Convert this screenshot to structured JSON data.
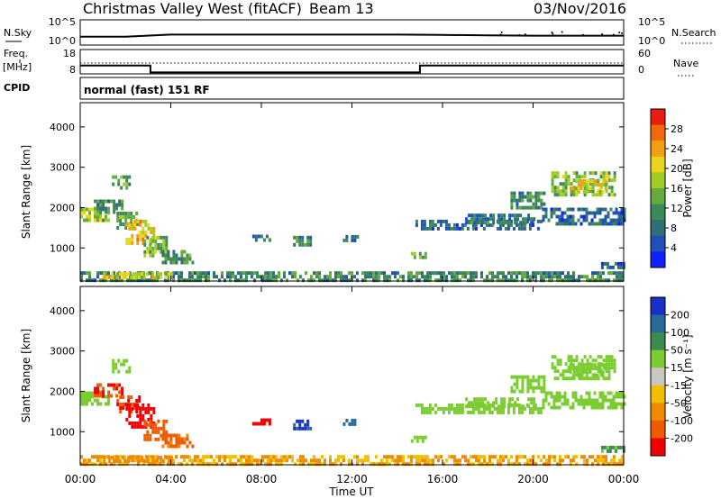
{
  "header": {
    "title": "Christmas Valley West (fitACF)",
    "beam": "Beam 13",
    "date": "03/Nov/2016"
  },
  "top_panels": {
    "nsky_label": "N.Sky",
    "nsearch_label": "N.Search",
    "noise_ticks_left": [
      "10^5",
      "10^0"
    ],
    "noise_ticks_right": [
      "10^5",
      "10^0"
    ],
    "freq_label": "Freq.",
    "freq_unit": "[MHz]",
    "freq_ticks": [
      "18",
      "8"
    ],
    "nave_label": "Nave",
    "nave_ticks": [
      "60",
      "0"
    ],
    "cpid_label": "CPID",
    "cpid_value": "normal (fast) 151 RF"
  },
  "chart_data": [
    {
      "type": "heatmap",
      "panel": "power",
      "ylabel": "Slant Range [km]",
      "ylim": [
        180,
        4600
      ],
      "y_ticks": [
        "4000",
        "3000",
        "2000",
        "1000"
      ],
      "colorbar_label": "Power [dB]",
      "colorbar_ticks": [
        "28",
        "24",
        "20",
        "16",
        "12",
        "8",
        "4"
      ],
      "colorbar_range": [
        0,
        30
      ],
      "colors": [
        "#1020ff",
        "#2050b8",
        "#306e78",
        "#3c8a5a",
        "#64aa3c",
        "#a0cc28",
        "#e8d61c",
        "#f0a010",
        "#f06a0c",
        "#e81e10"
      ],
      "regions": [
        {
          "t0": 0.0,
          "t1": 1.2,
          "r0": 1650,
          "r1": 2000,
          "value": 16
        },
        {
          "t0": 0.6,
          "t1": 1.8,
          "r0": 1900,
          "r1": 2200,
          "value": 10
        },
        {
          "t0": 1.4,
          "t1": 2.2,
          "r0": 2500,
          "r1": 2800,
          "value": 13
        },
        {
          "t0": 1.6,
          "t1": 2.6,
          "r0": 1500,
          "r1": 1900,
          "value": 12
        },
        {
          "t0": 2.0,
          "t1": 3.2,
          "r0": 1100,
          "r1": 1700,
          "value": 20
        },
        {
          "t0": 2.8,
          "t1": 3.8,
          "r0": 850,
          "r1": 1300,
          "value": 14
        },
        {
          "t0": 3.6,
          "t1": 5.0,
          "r0": 650,
          "r1": 950,
          "value": 11
        },
        {
          "t0": 7.6,
          "t1": 8.4,
          "r0": 1200,
          "r1": 1330,
          "value": 7
        },
        {
          "t0": 9.4,
          "t1": 10.2,
          "r0": 1050,
          "r1": 1300,
          "value": 9
        },
        {
          "t0": 11.6,
          "t1": 12.2,
          "r0": 1150,
          "r1": 1320,
          "value": 7
        },
        {
          "t0": 14.6,
          "t1": 15.3,
          "r0": 750,
          "r1": 900,
          "value": 12
        },
        {
          "t0": 14.8,
          "t1": 20.3,
          "r0": 1500,
          "r1": 1700,
          "value": 7
        },
        {
          "t0": 17.0,
          "t1": 20.0,
          "r0": 1650,
          "r1": 1850,
          "value": 8
        },
        {
          "t0": 19.0,
          "t1": 20.5,
          "r0": 2000,
          "r1": 2400,
          "value": 10
        },
        {
          "t0": 20.4,
          "t1": 24.0,
          "r0": 1600,
          "r1": 2000,
          "value": 7
        },
        {
          "t0": 20.8,
          "t1": 23.6,
          "r0": 2300,
          "r1": 2900,
          "value": 14
        },
        {
          "t0": 21.6,
          "t1": 23.2,
          "r0": 2400,
          "r1": 2700,
          "value": 19
        },
        {
          "t0": 0.0,
          "t1": 24.0,
          "r0": 200,
          "r1": 420,
          "value": 10
        },
        {
          "t0": 1.0,
          "t1": 4.0,
          "r0": 250,
          "r1": 400,
          "value": 18
        },
        {
          "t0": 23.0,
          "t1": 24.0,
          "r0": 550,
          "r1": 650,
          "value": 6
        }
      ]
    },
    {
      "type": "heatmap",
      "panel": "velocity",
      "ylabel": "Slant Range [km]",
      "ylim": [
        180,
        4600
      ],
      "y_ticks": [
        "4000",
        "3000",
        "2000",
        "1000"
      ],
      "colorbar_label": "Velocity [m s⁻¹]",
      "colorbar_ticks": [
        "200",
        "100",
        "50",
        "15",
        "-15",
        "-50",
        "-100",
        "-200"
      ],
      "colors": [
        "#1830c8",
        "#2a6a9a",
        "#3c8a50",
        "#7acc30",
        "#c8c8c0",
        "#f0c000",
        "#f08a00",
        "#f05a00",
        "#f00000"
      ],
      "regions": [
        {
          "t0": 0.0,
          "t1": 1.2,
          "r0": 1650,
          "r1": 2000,
          "value": 0
        },
        {
          "t0": 0.6,
          "t1": 1.8,
          "r0": 1900,
          "r1": 2200,
          "value": -150
        },
        {
          "t0": 1.4,
          "t1": 2.2,
          "r0": 2500,
          "r1": 2800,
          "value": 0
        },
        {
          "t0": 1.6,
          "t1": 2.6,
          "r0": 1500,
          "r1": 1900,
          "value": -150
        },
        {
          "t0": 2.0,
          "t1": 3.2,
          "r0": 1100,
          "r1": 1700,
          "value": -220
        },
        {
          "t0": 2.8,
          "t1": 3.8,
          "r0": 850,
          "r1": 1300,
          "value": -120
        },
        {
          "t0": 3.6,
          "t1": 5.0,
          "r0": 650,
          "r1": 950,
          "value": -80
        },
        {
          "t0": 7.6,
          "t1": 8.4,
          "r0": 1200,
          "r1": 1330,
          "value": -220
        },
        {
          "t0": 9.4,
          "t1": 10.2,
          "r0": 1050,
          "r1": 1300,
          "value": 180
        },
        {
          "t0": 11.6,
          "t1": 12.2,
          "r0": 1150,
          "r1": 1320,
          "value": 150
        },
        {
          "t0": 14.6,
          "t1": 15.3,
          "r0": 750,
          "r1": 900,
          "value": 0
        },
        {
          "t0": 14.8,
          "t1": 20.3,
          "r0": 1500,
          "r1": 1700,
          "value": 0
        },
        {
          "t0": 17.0,
          "t1": 20.0,
          "r0": 1650,
          "r1": 1850,
          "value": 0
        },
        {
          "t0": 19.0,
          "t1": 20.5,
          "r0": 2000,
          "r1": 2400,
          "value": 0
        },
        {
          "t0": 20.4,
          "t1": 24.0,
          "r0": 1600,
          "r1": 2000,
          "value": 0
        },
        {
          "t0": 20.8,
          "t1": 23.6,
          "r0": 2300,
          "r1": 2900,
          "value": 0
        },
        {
          "t0": 21.6,
          "t1": 23.2,
          "r0": 2400,
          "r1": 2700,
          "value": 0
        },
        {
          "t0": 0.0,
          "t1": 24.0,
          "r0": 200,
          "r1": 420,
          "value": -30
        },
        {
          "t0": 1.0,
          "t1": 4.0,
          "r0": 250,
          "r1": 400,
          "value": -40
        },
        {
          "t0": 23.0,
          "t1": 24.0,
          "r0": 550,
          "r1": 650,
          "value": 30
        }
      ]
    }
  ],
  "x_axis": {
    "label": "Time UT",
    "ticks": [
      "00:00",
      "04:00",
      "08:00",
      "12:00",
      "16:00",
      "20:00",
      "00:00"
    ],
    "range_hours": [
      0,
      24
    ]
  },
  "noise_series": {
    "t": [
      0,
      2,
      4,
      6,
      8,
      10,
      12,
      14,
      16,
      18,
      20,
      22,
      24
    ],
    "nsky_level": [
      1.3,
      1.3,
      1.9,
      1.9,
      1.9,
      1.9,
      1.9,
      1.9,
      1.8,
      1.7,
      1.6,
      1.6,
      1.6
    ]
  },
  "freq_series": {
    "t": [
      0,
      3.1,
      3.1,
      15.0,
      15.0,
      24
    ],
    "freq_mhz": [
      11.4,
      11.4,
      8.6,
      8.6,
      11.4,
      11.4
    ]
  }
}
